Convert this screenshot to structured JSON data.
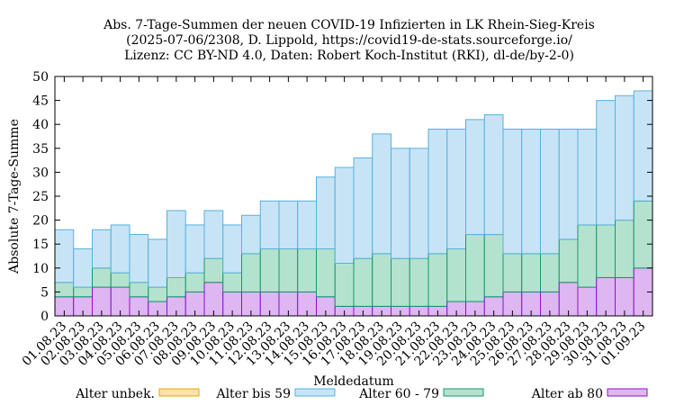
{
  "chart_data": {
    "type": "bar",
    "stacked": true,
    "title": [
      "Abs. 7-Tage-Summen der neuen COVID-19 Infizierten in LK Rhein-Sieg-Kreis",
      "(2025-07-06/2308, D. Lippold, https://covid19-de-stats.sourceforge.io/",
      "Lizenz: CC BY-ND 4.0, Daten: Robert Koch-Institut (RKI), dl-de/by-2-0)"
    ],
    "xlabel": "Meldedatum",
    "ylabel": "Absolute 7-Tage-Summe",
    "ylim": [
      0,
      50
    ],
    "yticks": [
      0,
      5,
      10,
      15,
      20,
      25,
      30,
      35,
      40,
      45,
      50
    ],
    "grid": false,
    "legend_position": "bottom",
    "categories": [
      "01.08.23",
      "02.08.23",
      "03.08.23",
      "04.08.23",
      "05.08.23",
      "06.08.23",
      "07.08.23",
      "08.08.23",
      "09.08.23",
      "10.08.23",
      "11.08.23",
      "12.08.23",
      "13.08.23",
      "14.08.23",
      "15.08.23",
      "16.08.23",
      "17.08.23",
      "18.08.23",
      "19.08.23",
      "20.08.23",
      "21.08.23",
      "22.08.23",
      "23.08.23",
      "24.08.23",
      "25.08.23",
      "26.08.23",
      "27.08.23",
      "28.08.23",
      "29.08.23",
      "30.08.23",
      "31.08.23",
      "01.09.23"
    ],
    "series": [
      {
        "name": "Alter unbek.",
        "fill": "#fde2a4",
        "stroke": "#e8a40c",
        "values": [
          0,
          0,
          0,
          0,
          0,
          0,
          0,
          0,
          0,
          0,
          0,
          0,
          0,
          0,
          0,
          0,
          0,
          0,
          0,
          0,
          0,
          0,
          0,
          0,
          0,
          0,
          0,
          0,
          0,
          0,
          0,
          0
        ]
      },
      {
        "name": "Alter ab 80",
        "fill": "#deb6f2",
        "stroke": "#8f10c8",
        "values": [
          4,
          4,
          6,
          6,
          4,
          3,
          4,
          5,
          7,
          5,
          5,
          5,
          5,
          5,
          4,
          2,
          2,
          2,
          2,
          2,
          2,
          3,
          3,
          4,
          5,
          5,
          5,
          7,
          6,
          8,
          8,
          10
        ]
      },
      {
        "name": "Alter 60 - 79",
        "fill": "#b3e3cf",
        "stroke": "#149a6a",
        "values": [
          3,
          2,
          4,
          3,
          3,
          3,
          4,
          4,
          5,
          4,
          8,
          9,
          9,
          9,
          10,
          9,
          10,
          11,
          10,
          10,
          11,
          11,
          14,
          13,
          8,
          8,
          8,
          9,
          13,
          11,
          12,
          14
        ]
      },
      {
        "name": "Alter bis 59",
        "fill": "#c6e4f6",
        "stroke": "#5ab0dc",
        "values": [
          11,
          8,
          8,
          10,
          10,
          10,
          14,
          10,
          10,
          10,
          8,
          10,
          10,
          10,
          15,
          20,
          21,
          25,
          23,
          23,
          26,
          25,
          24,
          25,
          26,
          26,
          26,
          23,
          20,
          26,
          26,
          23
        ]
      }
    ],
    "legend": [
      {
        "name": "Alter unbek.",
        "fill": "#fde2a4",
        "stroke": "#e8a40c"
      },
      {
        "name": "Alter bis 59",
        "fill": "#c6e4f6",
        "stroke": "#5ab0dc"
      },
      {
        "name": "Alter 60 - 79",
        "fill": "#b3e3cf",
        "stroke": "#149a6a"
      },
      {
        "name": "Alter ab 80",
        "fill": "#deb6f2",
        "stroke": "#8f10c8"
      }
    ]
  }
}
